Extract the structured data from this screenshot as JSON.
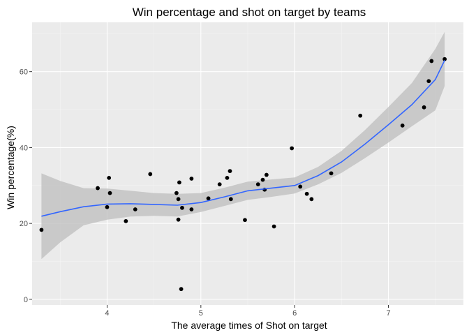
{
  "chart_data": {
    "type": "scatter",
    "title": "Win percentage and shot on target by teams",
    "xlabel": "The average times of Shot on target",
    "ylabel": "Win percentage(%)",
    "xlim": [
      3.2,
      7.8
    ],
    "ylim": [
      -1.5,
      73
    ],
    "x_ticks": [
      "4",
      "5",
      "6",
      "7"
    ],
    "y_ticks": [
      "0",
      "20",
      "40",
      "60"
    ],
    "grid": true,
    "background": "#ebebeb",
    "colors": {
      "points": "#000000",
      "smooth_line": "#3366ff",
      "confidence_band": "#bdbdbd"
    },
    "points": [
      {
        "x": 3.3,
        "y": 18.3
      },
      {
        "x": 3.9,
        "y": 29.3
      },
      {
        "x": 4.0,
        "y": 24.3
      },
      {
        "x": 4.02,
        "y": 32.0
      },
      {
        "x": 4.03,
        "y": 28.0
      },
      {
        "x": 4.2,
        "y": 20.6
      },
      {
        "x": 4.3,
        "y": 23.7
      },
      {
        "x": 4.46,
        "y": 33.0
      },
      {
        "x": 4.74,
        "y": 28.0
      },
      {
        "x": 4.76,
        "y": 21.0
      },
      {
        "x": 4.76,
        "y": 26.4
      },
      {
        "x": 4.77,
        "y": 30.8
      },
      {
        "x": 4.79,
        "y": 2.7
      },
      {
        "x": 4.8,
        "y": 24.1
      },
      {
        "x": 4.9,
        "y": 23.7
      },
      {
        "x": 4.9,
        "y": 31.8
      },
      {
        "x": 5.08,
        "y": 26.6
      },
      {
        "x": 5.2,
        "y": 30.3
      },
      {
        "x": 5.28,
        "y": 32.0
      },
      {
        "x": 5.31,
        "y": 33.8
      },
      {
        "x": 5.32,
        "y": 26.4
      },
      {
        "x": 5.47,
        "y": 20.9
      },
      {
        "x": 5.61,
        "y": 30.3
      },
      {
        "x": 5.66,
        "y": 31.5
      },
      {
        "x": 5.68,
        "y": 28.9
      },
      {
        "x": 5.7,
        "y": 32.8
      },
      {
        "x": 5.78,
        "y": 19.2
      },
      {
        "x": 5.97,
        "y": 39.8
      },
      {
        "x": 6.06,
        "y": 29.7
      },
      {
        "x": 6.13,
        "y": 27.8
      },
      {
        "x": 6.18,
        "y": 26.4
      },
      {
        "x": 6.39,
        "y": 33.2
      },
      {
        "x": 6.7,
        "y": 48.4
      },
      {
        "x": 7.15,
        "y": 45.8
      },
      {
        "x": 7.38,
        "y": 50.6
      },
      {
        "x": 7.43,
        "y": 57.5
      },
      {
        "x": 7.46,
        "y": 62.8
      },
      {
        "x": 7.6,
        "y": 63.3
      }
    ],
    "smooth": {
      "x": [
        3.3,
        3.5,
        3.75,
        4.0,
        4.25,
        4.5,
        4.75,
        5.0,
        5.25,
        5.5,
        5.75,
        6.0,
        6.25,
        6.5,
        6.75,
        7.0,
        7.25,
        7.5,
        7.6
      ],
      "y": [
        21.9,
        23.1,
        24.4,
        25.1,
        25.2,
        25.0,
        24.8,
        25.5,
        27.0,
        28.6,
        29.3,
        30.0,
        32.6,
        36.2,
        40.9,
        46.0,
        51.3,
        57.9,
        63.0
      ],
      "ymin": [
        10.6,
        15.0,
        19.5,
        21.0,
        21.8,
        22.0,
        21.8,
        23.0,
        24.6,
        26.2,
        27.0,
        27.9,
        30.3,
        33.3,
        37.2,
        41.3,
        45.6,
        49.8,
        56.2
      ],
      "ymax": [
        33.2,
        31.2,
        29.3,
        29.2,
        28.6,
        28.0,
        27.8,
        28.0,
        29.4,
        31.0,
        31.6,
        32.1,
        34.9,
        39.1,
        44.6,
        50.7,
        57.0,
        66.0,
        70.5
      ]
    }
  }
}
